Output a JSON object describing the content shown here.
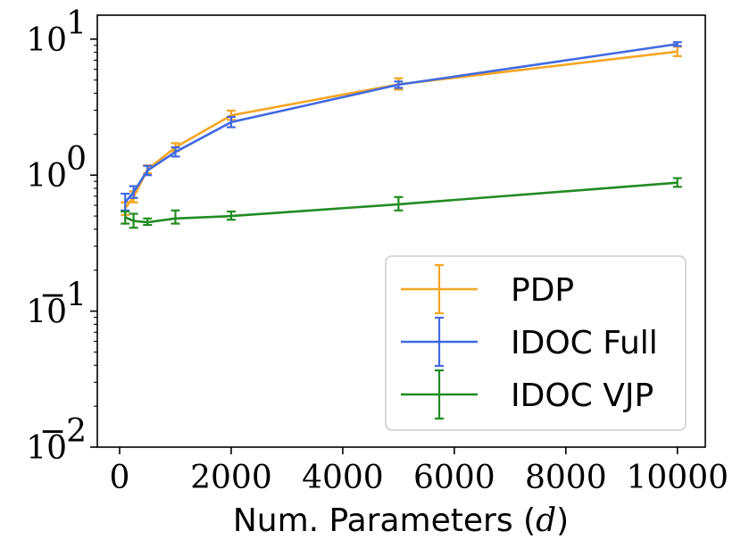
{
  "chart_data": {
    "type": "line",
    "yscale": "log",
    "xlabel": "Num. Parameters (d)",
    "xlabel_prefix": "Num. Parameters (",
    "xlabel_var": "d",
    "xlabel_suffix": ")",
    "xlim": [
      -400,
      10500
    ],
    "ylim": [
      0.01,
      15
    ],
    "x_ticks": [
      0,
      2000,
      4000,
      6000,
      8000,
      10000
    ],
    "x_tick_labels": [
      "0",
      "2000",
      "4000",
      "6000",
      "8000",
      "10000"
    ],
    "y_ticks": [
      {
        "value": 10,
        "base": "10",
        "exp": "1"
      },
      {
        "value": 1,
        "base": "10",
        "exp": "0"
      },
      {
        "value": 0.1,
        "base": "10",
        "exp": "−1"
      },
      {
        "value": 0.01,
        "base": "10",
        "exp": "−2"
      }
    ],
    "legend_position": "lower-right",
    "series": [
      {
        "name": "PDP",
        "color": "#F5A623",
        "points": [
          {
            "x": 100,
            "y": 0.57,
            "lo": 0.51,
            "hi": 0.63
          },
          {
            "x": 250,
            "y": 0.69,
            "lo": 0.63,
            "hi": 0.76
          },
          {
            "x": 500,
            "y": 1.1,
            "lo": 1.03,
            "hi": 1.18
          },
          {
            "x": 1000,
            "y": 1.6,
            "lo": 1.5,
            "hi": 1.72
          },
          {
            "x": 2000,
            "y": 2.75,
            "lo": 2.55,
            "hi": 2.98
          },
          {
            "x": 5000,
            "y": 4.65,
            "lo": 4.25,
            "hi": 5.15
          },
          {
            "x": 10000,
            "y": 8.1,
            "lo": 7.5,
            "hi": 8.8
          }
        ]
      },
      {
        "name": "IDOC Full",
        "color": "#4169E1",
        "points": [
          {
            "x": 100,
            "y": 0.63,
            "lo": 0.55,
            "hi": 0.73
          },
          {
            "x": 250,
            "y": 0.75,
            "lo": 0.68,
            "hi": 0.83
          },
          {
            "x": 500,
            "y": 1.08,
            "lo": 1.0,
            "hi": 1.17
          },
          {
            "x": 1000,
            "y": 1.48,
            "lo": 1.37,
            "hi": 1.6
          },
          {
            "x": 2000,
            "y": 2.45,
            "lo": 2.25,
            "hi": 2.68
          },
          {
            "x": 5000,
            "y": 4.62,
            "lo": 4.38,
            "hi": 4.88
          },
          {
            "x": 10000,
            "y": 9.2,
            "lo": 8.9,
            "hi": 9.5
          }
        ]
      },
      {
        "name": "IDOC VJP",
        "color": "#228B22",
        "points": [
          {
            "x": 100,
            "y": 0.49,
            "lo": 0.44,
            "hi": 0.54
          },
          {
            "x": 250,
            "y": 0.46,
            "lo": 0.41,
            "hi": 0.52
          },
          {
            "x": 500,
            "y": 0.45,
            "lo": 0.43,
            "hi": 0.48
          },
          {
            "x": 1000,
            "y": 0.48,
            "lo": 0.44,
            "hi": 0.55
          },
          {
            "x": 2000,
            "y": 0.5,
            "lo": 0.47,
            "hi": 0.54
          },
          {
            "x": 5000,
            "y": 0.61,
            "lo": 0.55,
            "hi": 0.69
          },
          {
            "x": 10000,
            "y": 0.88,
            "lo": 0.82,
            "hi": 0.95
          }
        ]
      }
    ]
  }
}
